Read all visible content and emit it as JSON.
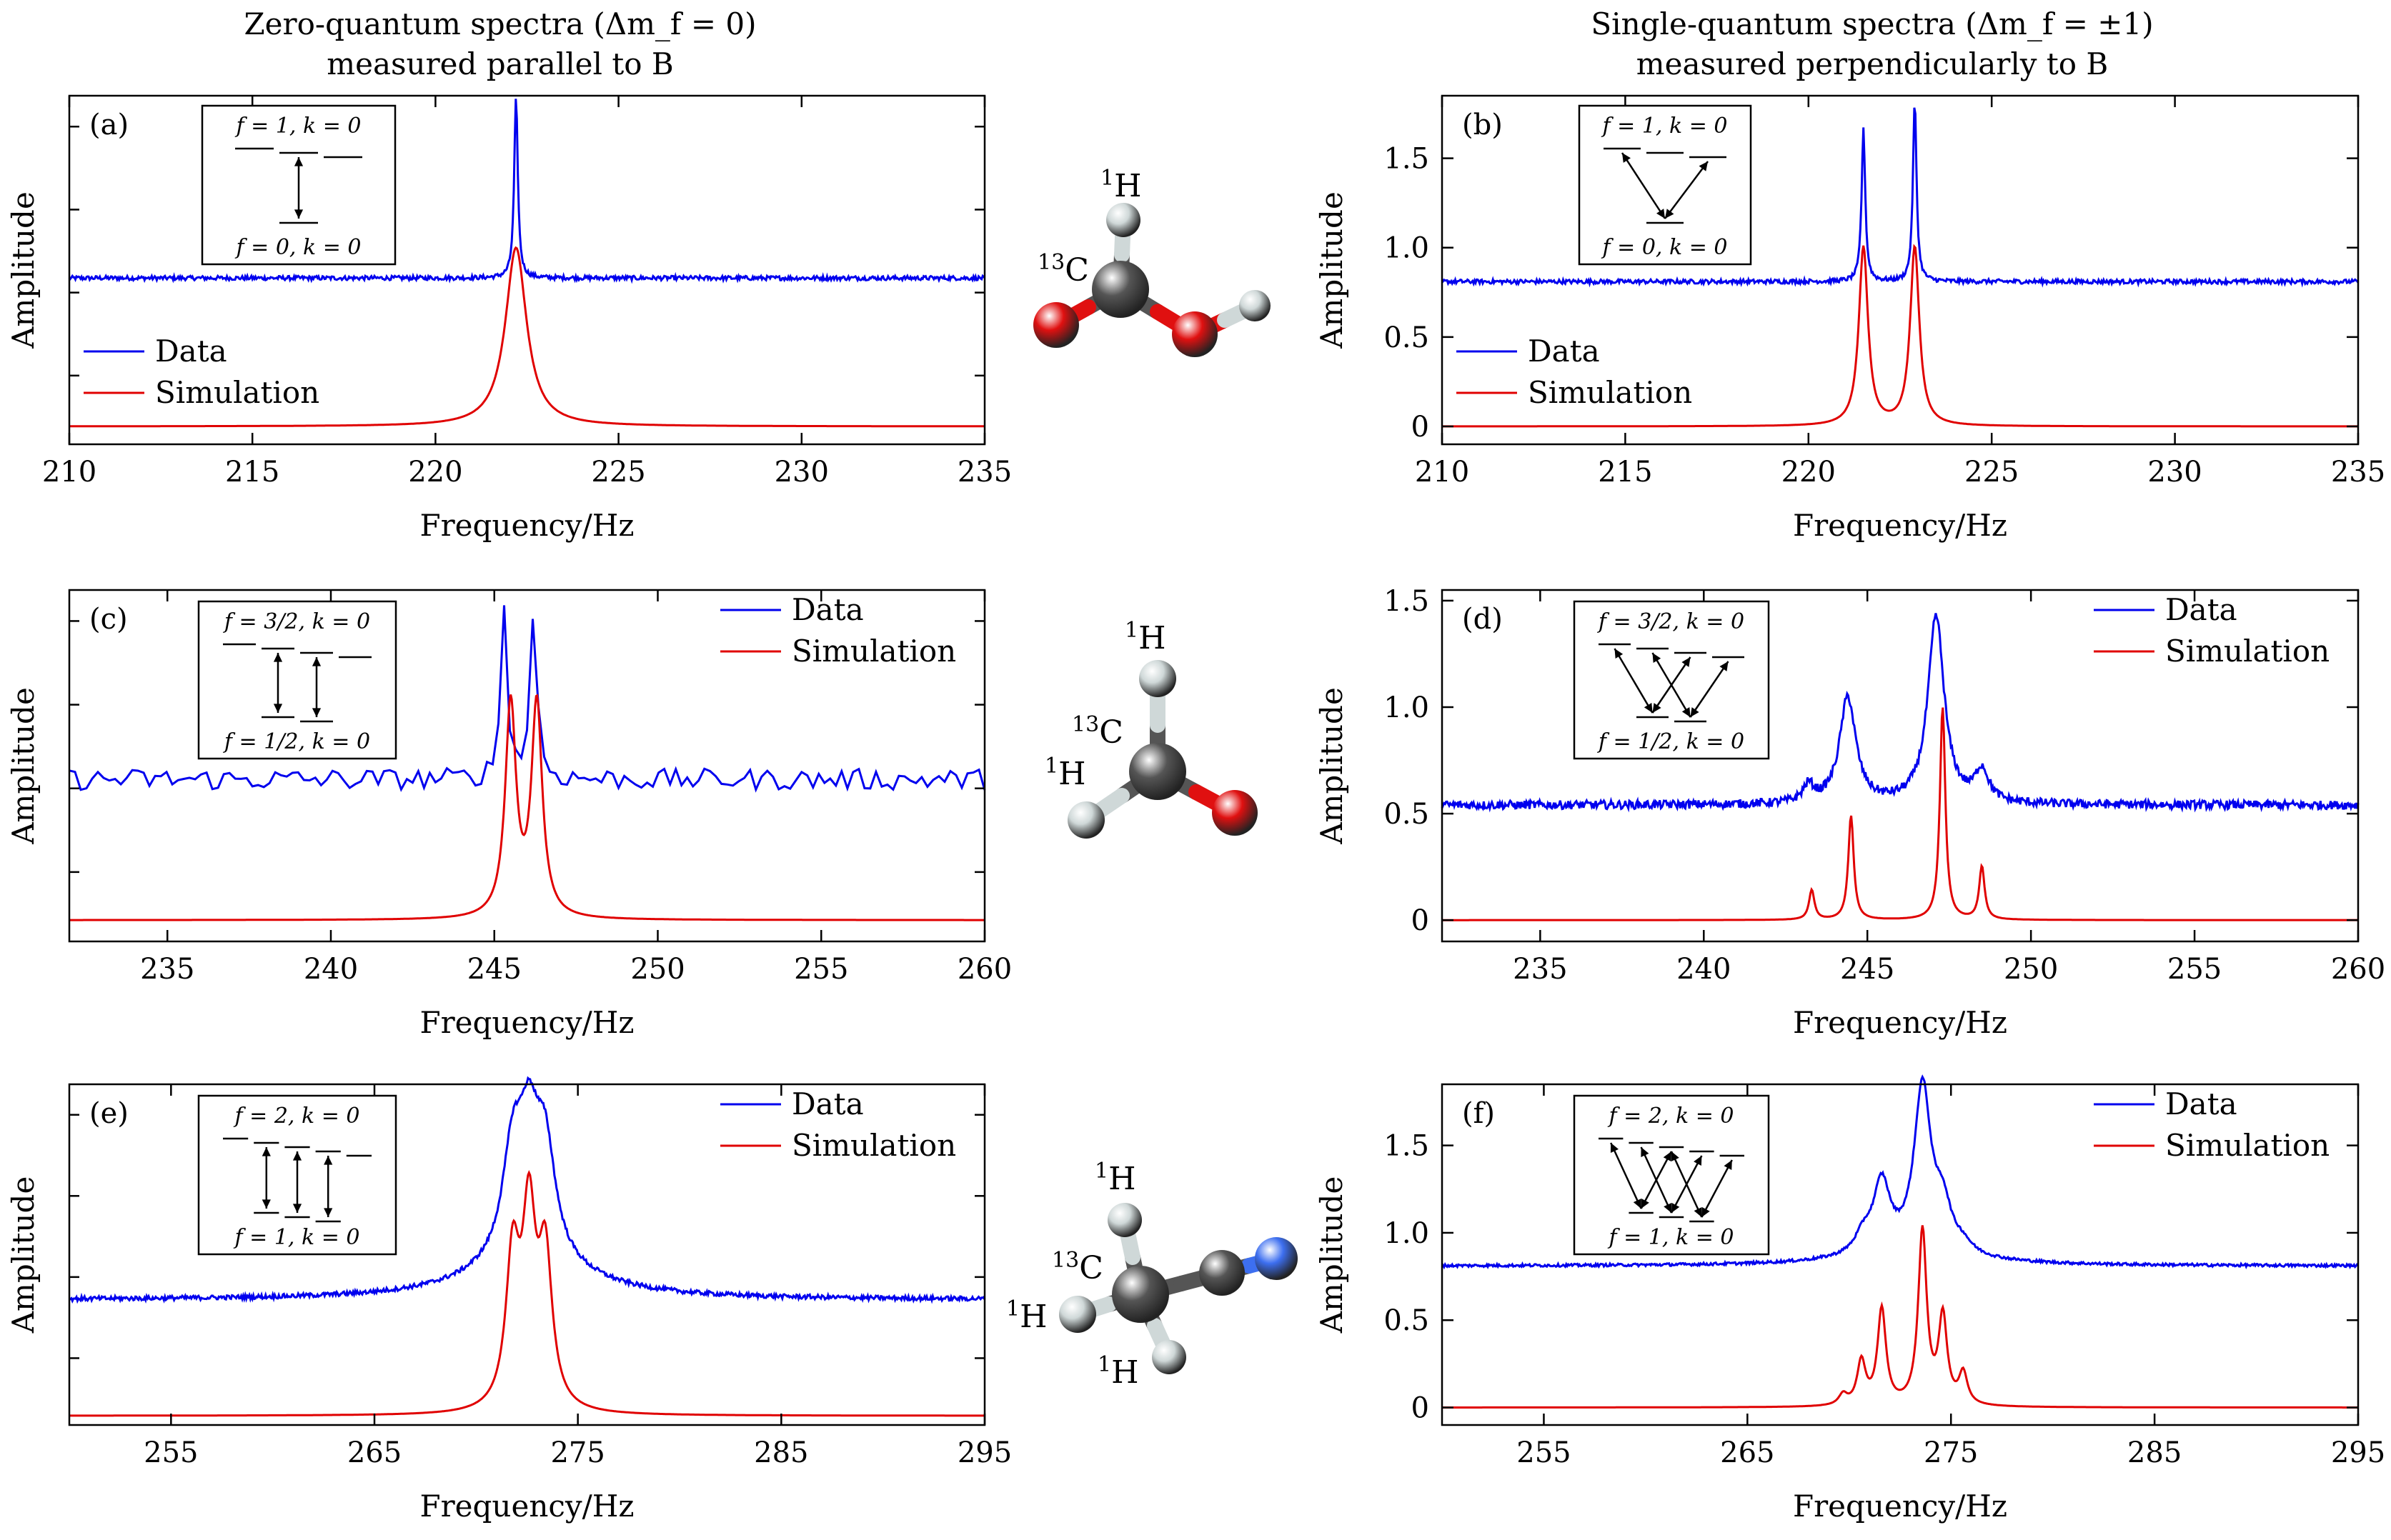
{
  "headings": {
    "left_line1": "Zero-quantum spectra (Δm_f = 0)",
    "left_line2": "measured parallel to B",
    "right_line1": "Single-quantum spectra (Δm_f = ±1)",
    "right_line2": "measured perpendicularly to B"
  },
  "molecules": [
    {
      "name": "formic acid",
      "labels": [
        "1H",
        "13C"
      ]
    },
    {
      "name": "formaldehyde",
      "labels": [
        "1H",
        "13C",
        "1H"
      ]
    },
    {
      "name": "acetonitrile",
      "labels": [
        "1H",
        "13C",
        "1H",
        "1H"
      ]
    }
  ],
  "colors": {
    "data": "#0000ee",
    "simulation": "#e00000",
    "oxygen": "#e01010",
    "carbon": "#555555",
    "hydrogen": "#cfd8d8",
    "nitrogen": "#3d6ff0"
  },
  "chart_data": [
    {
      "type": "line",
      "panel": "(a)",
      "xlabel": "Frequency/Hz",
      "ylabel": "Amplitude",
      "xlim": [
        210,
        235
      ],
      "ylim": [
        -0.1,
        1.85
      ],
      "xticks": [
        "210",
        "215",
        "220",
        "225",
        "230",
        "235"
      ],
      "yticks": [],
      "legend": [
        "Data",
        "Simulation"
      ],
      "legend_position": "bottom-left",
      "inset": {
        "top": "f = 1, k = 0",
        "bottom": "f = 0, k = 0",
        "levels_top": 3,
        "levels_bottom": 1
      },
      "series": [
        {
          "name": "Data",
          "baseline": 0.83,
          "peaks": [
            [
              222.2,
              1.0,
              0.06
            ]
          ],
          "noise": 0.012
        },
        {
          "name": "Simulation",
          "baseline": 0.0,
          "peaks": [
            [
              222.2,
              1.0,
              0.35
            ]
          ],
          "noise": 0
        }
      ]
    },
    {
      "type": "line",
      "panel": "(b)",
      "xlabel": "Frequency/Hz",
      "ylabel": "Amplitude",
      "xlim": [
        210,
        235
      ],
      "ylim": [
        -0.1,
        1.85
      ],
      "xticks": [
        "210",
        "215",
        "220",
        "225",
        "230",
        "235"
      ],
      "yticks": [
        "0",
        "0.5",
        "1.0",
        "1.5"
      ],
      "legend": [
        "Data",
        "Simulation"
      ],
      "legend_position": "bottom-left",
      "inset": {
        "top": "f = 1, k = 0",
        "bottom": "f = 0, k = 0",
        "levels_top": 3,
        "levels_bottom": 1
      },
      "series": [
        {
          "name": "Data",
          "baseline": 0.81,
          "peaks": [
            [
              221.5,
              0.85,
              0.06
            ],
            [
              222.9,
              1.0,
              0.06
            ]
          ],
          "noise": 0.012
        },
        {
          "name": "Simulation",
          "baseline": 0.0,
          "peaks": [
            [
              221.5,
              1.0,
              0.15
            ],
            [
              222.9,
              1.0,
              0.15
            ]
          ],
          "noise": 0
        }
      ]
    },
    {
      "type": "line",
      "panel": "(c)",
      "xlabel": "Frequency/Hz",
      "ylabel": "Amplitude",
      "xlim": [
        232,
        260
      ],
      "ylim": [
        -0.1,
        1.55
      ],
      "xticks": [
        "235",
        "240",
        "245",
        "250",
        "255",
        "260"
      ],
      "yticks": [],
      "legend": [
        "Data",
        "Simulation"
      ],
      "legend_position": "top-right",
      "inset": {
        "top": "f = 3/2, k = 0",
        "bottom": "f = 1/2, k = 0",
        "levels_top": 4,
        "levels_bottom": 2
      },
      "series": [
        {
          "name": "Data",
          "baseline": 0.66,
          "peaks": [
            [
              245.3,
              0.8,
              0.12
            ],
            [
              246.2,
              0.8,
              0.12
            ]
          ],
          "noise": 0.05
        },
        {
          "name": "Simulation",
          "baseline": 0.0,
          "peaks": [
            [
              245.5,
              1.0,
              0.2
            ],
            [
              246.3,
              1.0,
              0.2
            ]
          ],
          "noise": 0
        }
      ]
    },
    {
      "type": "line",
      "panel": "(d)",
      "xlabel": "Frequency/Hz",
      "ylabel": "Amplitude",
      "xlim": [
        232,
        260
      ],
      "ylim": [
        -0.1,
        1.55
      ],
      "xticks": [
        "235",
        "240",
        "245",
        "250",
        "255",
        "260"
      ],
      "yticks": [
        "0",
        "0.5",
        "1.0",
        "1.5"
      ],
      "legend": [
        "Data",
        "Simulation"
      ],
      "legend_position": "top-right",
      "inset": {
        "top": "f = 3/2, k = 0",
        "bottom": "f = 1/2, k = 0",
        "levels_top": 4,
        "levels_bottom": 2
      },
      "series": [
        {
          "name": "Data",
          "baseline": 0.54,
          "peaks": [
            [
              243.2,
              0.08,
              0.2
            ],
            [
              244.4,
              0.5,
              0.3
            ],
            [
              247.1,
              0.88,
              0.3
            ],
            [
              248.5,
              0.15,
              0.25
            ]
          ],
          "noise": 0.02
        },
        {
          "name": "Simulation",
          "baseline": 0.0,
          "peaks": [
            [
              243.3,
              0.14,
              0.1
            ],
            [
              244.5,
              0.49,
              0.1
            ],
            [
              247.3,
              1.0,
              0.1
            ],
            [
              248.5,
              0.25,
              0.1
            ]
          ],
          "noise": 0
        }
      ]
    },
    {
      "type": "line",
      "panel": "(e)",
      "xlabel": "Frequency/Hz",
      "ylabel": "Amplitude",
      "xlim": [
        250,
        295
      ],
      "ylim": [
        -0.05,
        1.8
      ],
      "xticks": [
        "255",
        "265",
        "275",
        "285",
        "295"
      ],
      "yticks": [],
      "legend": [
        "Data",
        "Simulation"
      ],
      "legend_position": "top-right",
      "inset": {
        "top": "f = 2, k = 0",
        "bottom": "f = 1, k = 0",
        "levels_top": 5,
        "levels_bottom": 3
      },
      "series": [
        {
          "name": "Data",
          "baseline": 0.63,
          "peaks": [
            [
              271.8,
              0.55,
              0.6
            ],
            [
              272.6,
              0.6,
              0.6
            ],
            [
              273.4,
              0.55,
              0.6
            ],
            [
              272.6,
              0.2,
              3.5
            ]
          ],
          "noise": 0.012
        },
        {
          "name": "Simulation",
          "baseline": 0.0,
          "peaks": [
            [
              271.8,
              0.8,
              0.4
            ],
            [
              272.6,
              1.0,
              0.4
            ],
            [
              273.4,
              0.8,
              0.4
            ]
          ],
          "noise": 0
        }
      ]
    },
    {
      "type": "line",
      "panel": "(f)",
      "xlabel": "Frequency/Hz",
      "ylabel": "Amplitude",
      "xlim": [
        250,
        295
      ],
      "ylim": [
        -0.1,
        1.85
      ],
      "xticks": [
        "255",
        "265",
        "275",
        "285",
        "295"
      ],
      "yticks": [
        "0",
        "0.5",
        "1.0",
        "1.5"
      ],
      "legend": [
        "Data",
        "Simulation"
      ],
      "legend_position": "top-right",
      "inset": {
        "top": "f = 2, k = 0",
        "bottom": "f = 1, k = 0",
        "levels_top": 5,
        "levels_bottom": 3
      },
      "series": [
        {
          "name": "Data",
          "baseline": 0.81,
          "peaks": [
            [
              270.7,
              0.1,
              0.5
            ],
            [
              271.6,
              0.4,
              0.5
            ],
            [
              273.6,
              0.95,
              0.5
            ],
            [
              274.6,
              0.25,
              0.5
            ],
            [
              275.6,
              0.05,
              0.5
            ],
            [
              273.0,
              0.05,
              4
            ]
          ],
          "noise": 0.008
        },
        {
          "name": "Simulation",
          "baseline": 0.0,
          "peaks": [
            [
              269.7,
              0.06,
              0.25
            ],
            [
              270.6,
              0.25,
              0.25
            ],
            [
              271.6,
              0.55,
              0.25
            ],
            [
              273.6,
              1.0,
              0.25
            ],
            [
              274.6,
              0.5,
              0.25
            ],
            [
              275.6,
              0.18,
              0.25
            ]
          ],
          "noise": 0
        }
      ]
    }
  ]
}
